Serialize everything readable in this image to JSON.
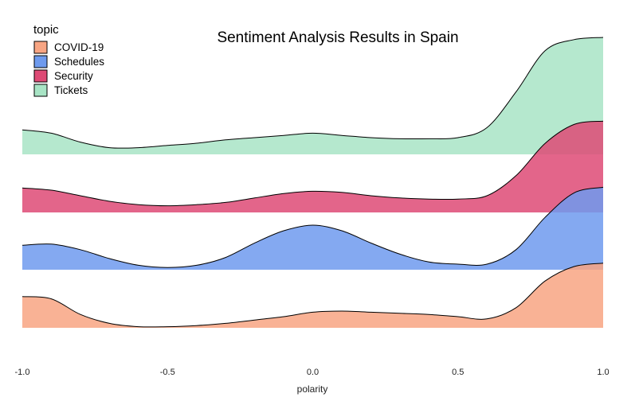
{
  "chart_data": {
    "type": "ridgeline",
    "title": "Sentiment Analysis Results in Spain",
    "xlabel": "polarity",
    "ylabel": "",
    "xlim": [
      -1.0,
      1.0
    ],
    "xticks": [
      -1.0,
      -0.5,
      0.0,
      0.5,
      1.0
    ],
    "xtick_labels": [
      "-1.0",
      "-0.5",
      "0.0",
      "0.5",
      "1.0"
    ],
    "legend": {
      "title": "topic",
      "placement": "top-left"
    },
    "grid": false,
    "x": [
      -1.0,
      -0.9,
      -0.8,
      -0.7,
      -0.6,
      -0.5,
      -0.4,
      -0.3,
      -0.2,
      -0.1,
      0.0,
      0.1,
      0.2,
      0.3,
      0.4,
      0.5,
      0.6,
      0.7,
      0.8,
      0.9,
      1.0
    ],
    "series": [
      {
        "name": "COVID-19",
        "color": "#F8A583",
        "values": [
          0.28,
          0.26,
          0.12,
          0.04,
          0.01,
          0.01,
          0.02,
          0.04,
          0.07,
          0.1,
          0.14,
          0.15,
          0.14,
          0.13,
          0.12,
          0.1,
          0.08,
          0.18,
          0.42,
          0.55,
          0.58
        ]
      },
      {
        "name": "Schedules",
        "color": "#6E9AEE",
        "values": [
          0.22,
          0.23,
          0.18,
          0.1,
          0.04,
          0.02,
          0.04,
          0.11,
          0.24,
          0.35,
          0.4,
          0.35,
          0.24,
          0.14,
          0.07,
          0.05,
          0.05,
          0.18,
          0.47,
          0.69,
          0.74
        ]
      },
      {
        "name": "Security",
        "color": "#DE4A75",
        "values": [
          0.22,
          0.2,
          0.15,
          0.1,
          0.07,
          0.06,
          0.07,
          0.09,
          0.13,
          0.17,
          0.19,
          0.18,
          0.15,
          0.13,
          0.12,
          0.12,
          0.15,
          0.33,
          0.62,
          0.79,
          0.82
        ]
      },
      {
        "name": "Tickets",
        "color": "#A8E4C5",
        "values": [
          0.22,
          0.19,
          0.11,
          0.06,
          0.06,
          0.08,
          0.1,
          0.13,
          0.15,
          0.17,
          0.19,
          0.17,
          0.15,
          0.14,
          0.14,
          0.15,
          0.24,
          0.56,
          0.93,
          1.03,
          1.05
        ]
      }
    ]
  }
}
